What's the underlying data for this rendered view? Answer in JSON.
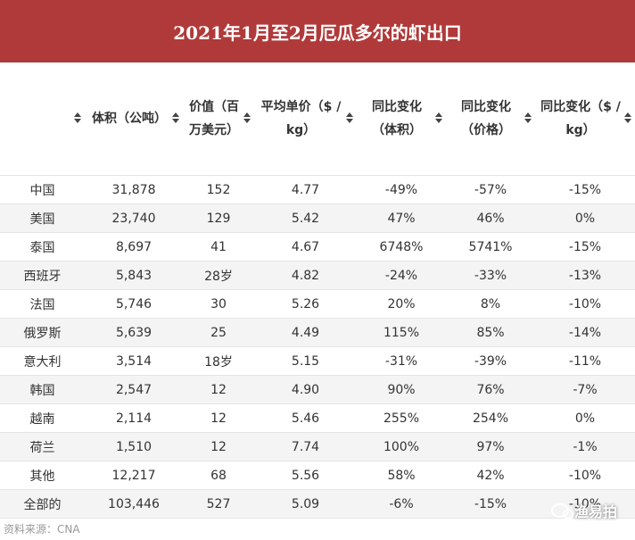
{
  "title": "2021年1月至2月厄瓜多尔的虾出口",
  "table": {
    "headers": [
      "",
      "体积（公吨）",
      "价值（百万美元）",
      "平均单价（$ / kg）",
      "同比变化（体积）",
      "同比变化（价格）",
      "同比变化（$ / kg）"
    ],
    "rows": [
      [
        "中国",
        "31,878",
        "152",
        "4.77",
        "-49%",
        "-57%",
        "-15%"
      ],
      [
        "美国",
        "23,740",
        "129",
        "5.42",
        "47%",
        "46%",
        "0%"
      ],
      [
        "泰国",
        "8,697",
        "41",
        "4.67",
        "6748%",
        "5741%",
        "-15%"
      ],
      [
        "西班牙",
        "5,843",
        "28岁",
        "4.82",
        "-24%",
        "-33%",
        "-13%"
      ],
      [
        "法国",
        "5,746",
        "30",
        "5.26",
        "20%",
        "8%",
        "-10%"
      ],
      [
        "俄罗斯",
        "5,639",
        "25",
        "4.49",
        "115%",
        "85%",
        "-14%"
      ],
      [
        "意大利",
        "3,514",
        "18岁",
        "5.15",
        "-31%",
        "-39%",
        "-11%"
      ],
      [
        "韩国",
        "2,547",
        "12",
        "4.90",
        "90%",
        "76%",
        "-7%"
      ],
      [
        "越南",
        "2,114",
        "12",
        "5.46",
        "255%",
        "254%",
        "0%"
      ],
      [
        "荷兰",
        "1,510",
        "12",
        "7.74",
        "100%",
        "97%",
        "-1%"
      ],
      [
        "其他",
        "12,217",
        "68",
        "5.56",
        "58%",
        "42%",
        "-10%"
      ],
      [
        "全部的",
        "103,446",
        "527",
        "5.09",
        "-6%",
        "-15%",
        "-10%"
      ]
    ]
  },
  "source": "资料来源：CNA",
  "watermark": "渔易拍"
}
